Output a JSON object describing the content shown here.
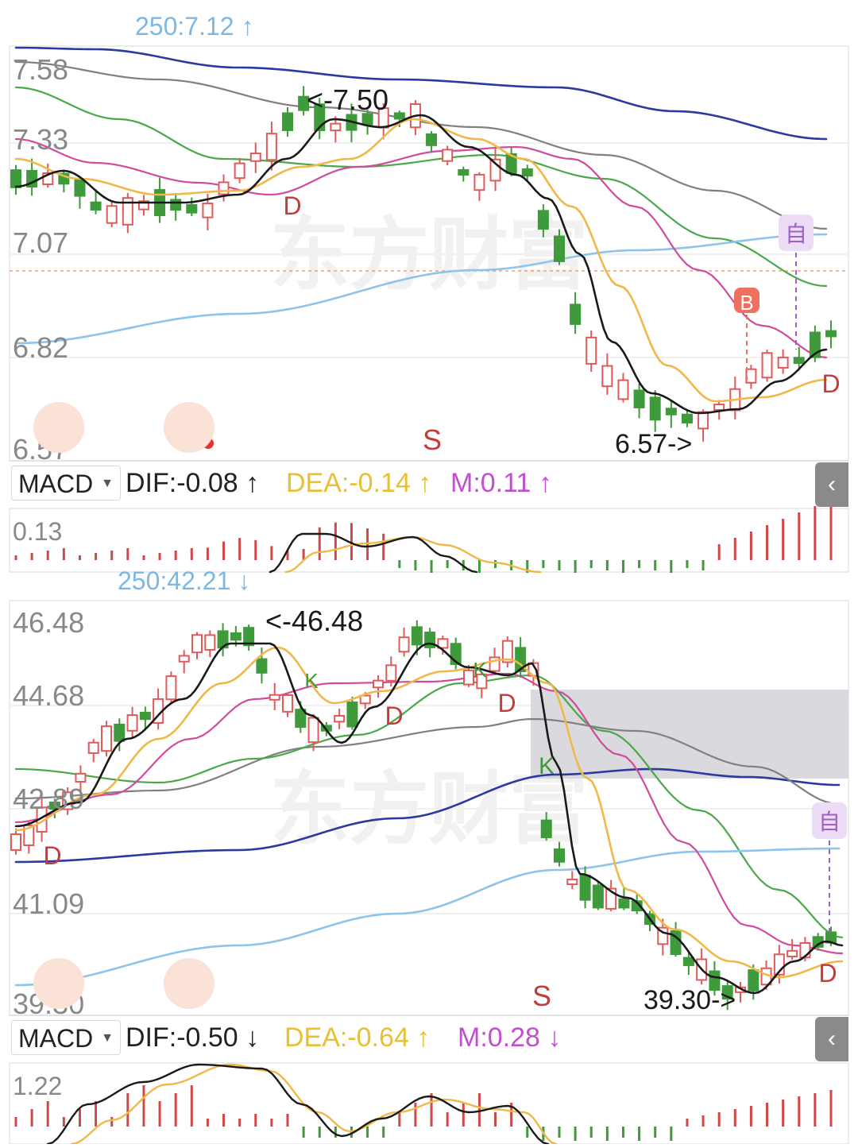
{
  "watermark": "东方财富",
  "colors": {
    "up": "#e05a5a",
    "down": "#3e9a3a",
    "ma5": "#1a1a1a",
    "ma10": "#f0b848",
    "ma20": "#d04b9e",
    "ma60": "#4aa84a",
    "ma120": "#808080",
    "ma250": "#2a3aa0",
    "ma_long": "#8cc4ec",
    "dea": "#e8c030",
    "m": "#c050d0",
    "accent": "#f07838"
  },
  "panels": [
    {
      "ma_label": "250:7.12 ↑",
      "y_ticks": [
        "7.58",
        "7.33",
        "7.07",
        "6.82",
        "6.57"
      ],
      "y_range": [
        6.57,
        7.58
      ],
      "high_label": "<-7.50",
      "low_label": "6.57->",
      "markers": {
        "s": "S",
        "d1": "D",
        "d2": "D",
        "b": "B",
        "zi": "自"
      },
      "icons": {
        "left": "double-chevron-icon",
        "right": "expand-icon"
      },
      "macd": {
        "select_label": "MACD",
        "dif": "DIF:-0.08 ↑",
        "dea": "DEA:-0.14 ↑",
        "m": "M:0.11 ↑",
        "tick": "0.13"
      }
    },
    {
      "ma_label": "250:42.21 ↓",
      "y_ticks": [
        "46.48",
        "44.68",
        "42.89",
        "41.09",
        "39.30"
      ],
      "y_range": [
        39.3,
        46.48
      ],
      "high_label": "<-46.48",
      "low_label": "39.30->",
      "markers": {
        "s": "S",
        "k1": "K",
        "k2": "K",
        "k3": "K",
        "d1": "D",
        "d2": "D",
        "d3": "D",
        "d4": "D",
        "zi": "自"
      },
      "icons": {
        "left": "double-chevron-icon",
        "right": "expand-icon"
      },
      "macd": {
        "select_label": "MACD",
        "dif": "DIF:-0.50 ↓",
        "dea": "DEA:-0.64 ↑",
        "m": "M:0.28 ↓",
        "tick": "1.22"
      }
    }
  ],
  "chart_data": [
    {
      "type": "candlestick",
      "y_range": [
        6.57,
        7.58
      ],
      "indicator_lines": [
        "MA5",
        "MA10",
        "MA20",
        "MA60",
        "MA120",
        "MA250"
      ],
      "labeled_extremes": {
        "high": 7.5,
        "low": 6.57
      },
      "ma250_last": 7.12,
      "macd": {
        "DIF": -0.08,
        "DEA": -0.14,
        "M": 0.11,
        "axis_tick": 0.13
      }
    },
    {
      "type": "candlestick",
      "y_range": [
        39.3,
        46.48
      ],
      "indicator_lines": [
        "MA5",
        "MA10",
        "MA20",
        "MA60",
        "MA120",
        "MA250"
      ],
      "labeled_extremes": {
        "high": 46.48,
        "low": 39.3
      },
      "ma250_last": 42.21,
      "macd": {
        "DIF": -0.5,
        "DEA": -0.64,
        "M": 0.28,
        "axis_tick": 1.22
      }
    }
  ]
}
